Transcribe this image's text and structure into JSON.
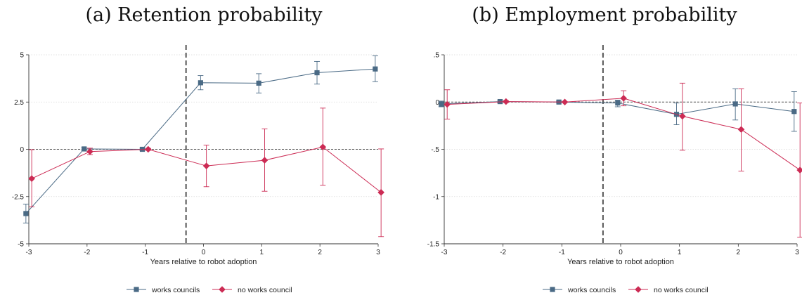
{
  "panels": [
    {
      "title": "(a) Retention probability"
    },
    {
      "title": "(b) Employment probability"
    }
  ],
  "colors": {
    "works_councils": "#4a6a85",
    "no_works_council": "#cc2b54",
    "event_line": "#555555",
    "grid": "#d9d9d9"
  },
  "chart_data": [
    {
      "type": "line",
      "title": "(a) Retention probability",
      "xlabel": "Years relative to robot adoption",
      "ylabel": "",
      "x": [
        -3,
        -2,
        -1,
        0,
        1,
        2,
        3
      ],
      "xlim": [
        -3,
        3
      ],
      "ylim": [
        -5,
        5
      ],
      "yticks": [
        -5,
        -2.5,
        0,
        2.5,
        5
      ],
      "ytick_labels": [
        "-5",
        "-2.5",
        "0",
        "2.5",
        "5"
      ],
      "xticks": [
        -3,
        -2,
        -1,
        0,
        1,
        2,
        3
      ],
      "xtick_labels": [
        "-3",
        "-2",
        "-1",
        "0",
        "1",
        "2",
        "3"
      ],
      "event_line_x": -0.3,
      "reference_line_y": 0,
      "grid": true,
      "legend_position": "bottom-center",
      "series": [
        {
          "name": "works councils",
          "marker": "square",
          "values": [
            -3.4,
            0.02,
            0,
            3.52,
            3.5,
            4.05,
            4.25
          ],
          "ci_low": [
            -3.9,
            -0.08,
            -0.06,
            3.15,
            2.98,
            3.45,
            3.58
          ],
          "ci_high": [
            -2.9,
            0.1,
            0.06,
            3.9,
            4.0,
            4.65,
            4.95
          ]
        },
        {
          "name": "no works council",
          "marker": "diamond",
          "values": [
            -1.55,
            -0.12,
            0,
            -0.88,
            -0.58,
            0.12,
            -2.28
          ],
          "ci_low": [
            -3.05,
            -0.28,
            -0.05,
            -1.98,
            -2.22,
            -1.9,
            -4.62
          ],
          "ci_high": [
            -0.02,
            0.06,
            0.05,
            0.22,
            1.08,
            2.18,
            0.02
          ]
        }
      ]
    },
    {
      "type": "line",
      "title": "(b) Employment probability",
      "xlabel": "Years relative to robot adoption",
      "ylabel": "",
      "x": [
        -3,
        -2,
        -1,
        0,
        1,
        2,
        3
      ],
      "xlim": [
        -3,
        3
      ],
      "ylim": [
        -1.5,
        0.5
      ],
      "yticks": [
        -1.5,
        -1,
        -0.5,
        0,
        0.5
      ],
      "ytick_labels": [
        "-1.5",
        "-1",
        "-.5",
        "0",
        ".5"
      ],
      "xticks": [
        -3,
        -2,
        -1,
        0,
        1,
        2,
        3
      ],
      "xtick_labels": [
        "-3",
        "-2",
        "-1",
        "0",
        "1",
        "2",
        "3"
      ],
      "event_line_x": -0.3,
      "reference_line_y": 0,
      "grid": true,
      "legend_position": "bottom-center",
      "series": [
        {
          "name": "works councils",
          "marker": "square",
          "values": [
            -0.02,
            0.005,
            0,
            -0.01,
            -0.13,
            -0.02,
            -0.1
          ],
          "ci_low": [
            -0.05,
            -0.01,
            -0.01,
            -0.05,
            -0.24,
            -0.19,
            -0.31
          ],
          "ci_high": [
            0.01,
            0.02,
            0.01,
            0.02,
            -0.01,
            0.14,
            0.11
          ]
        },
        {
          "name": "no works council",
          "marker": "diamond",
          "values": [
            -0.025,
            0.005,
            0,
            0.04,
            -0.15,
            -0.29,
            -0.72
          ],
          "ci_low": [
            -0.18,
            -0.005,
            -0.005,
            -0.04,
            -0.51,
            -0.73,
            -1.43
          ],
          "ci_high": [
            0.13,
            0.015,
            0.005,
            0.12,
            0.2,
            0.14,
            -0.01
          ]
        }
      ]
    }
  ]
}
